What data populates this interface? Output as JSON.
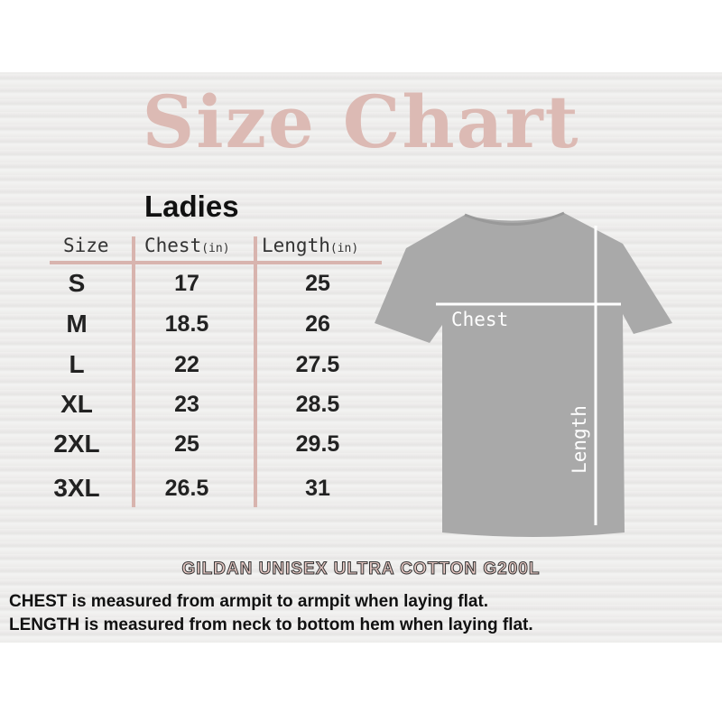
{
  "title": "Size Chart",
  "section": "Ladies",
  "table": {
    "headers": [
      {
        "label": "Size",
        "unit": ""
      },
      {
        "label": "Chest",
        "unit": "(in)"
      },
      {
        "label": "Length",
        "unit": "(in)"
      }
    ],
    "rows": [
      {
        "size": "S",
        "chest": "17",
        "length": "25"
      },
      {
        "size": "M",
        "chest": "18.5",
        "length": "26"
      },
      {
        "size": "L",
        "chest": "22",
        "length": "27.5"
      },
      {
        "size": "XL",
        "chest": "23",
        "length": "28.5"
      },
      {
        "size": "2XL",
        "chest": "25",
        "length": "29.5"
      },
      {
        "size": "3XL",
        "chest": "26.5",
        "length": "31"
      }
    ]
  },
  "diagram": {
    "chest_label": "Chest",
    "length_label": "Length",
    "shirt_color": "#a9a9a9"
  },
  "brand": "GILDAN UNISEX ULTRA COTTON G200L",
  "notes": [
    {
      "key": "CHEST",
      "text": " is measured from armpit to armpit when laying flat."
    },
    {
      "key": "LENGTH",
      "text": " is measured from neck to bottom hem when laying flat."
    }
  ],
  "colors": {
    "accent": "#dcbab4"
  }
}
